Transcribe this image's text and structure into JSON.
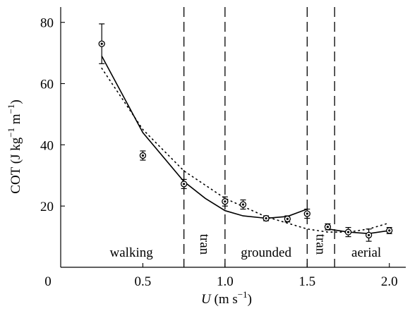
{
  "chart_data": {
    "type": "scatter",
    "title": "",
    "xlabel_italic": "U",
    "xlabel_units": " (m s",
    "xlabel_exp": "−1",
    "xlabel_close": ")",
    "ylabel_main": "COT (J kg",
    "ylabel_exp1": "−1",
    "ylabel_mid": " m",
    "ylabel_exp2": "−1",
    "ylabel_close": ")",
    "xlim": [
      0,
      2.1
    ],
    "ylim": [
      0,
      85
    ],
    "x_ticks": [
      {
        "value": 0,
        "label": "0"
      },
      {
        "value": 0.5,
        "label": "0.5"
      },
      {
        "value": 1.0,
        "label": "1.0"
      },
      {
        "value": 1.5,
        "label": "1.5"
      },
      {
        "value": 2.0,
        "label": "2.0"
      }
    ],
    "y_ticks": [
      {
        "value": 20,
        "label": "20"
      },
      {
        "value": 40,
        "label": "40"
      },
      {
        "value": 60,
        "label": "60"
      },
      {
        "value": 80,
        "label": "80"
      }
    ],
    "points": [
      {
        "x": 0.25,
        "y": 73.0,
        "err": 6.5
      },
      {
        "x": 0.5,
        "y": 36.5,
        "err": 1.5
      },
      {
        "x": 0.75,
        "y": 27.2,
        "err": 1.5
      },
      {
        "x": 1.0,
        "y": 21.5,
        "err": 1.5
      },
      {
        "x": 1.11,
        "y": 20.5,
        "err": 1.5
      },
      {
        "x": 1.25,
        "y": 16.0,
        "err": 0.8
      },
      {
        "x": 1.38,
        "y": 15.8,
        "err": 1.0
      },
      {
        "x": 1.5,
        "y": 17.5,
        "err": 1.5
      },
      {
        "x": 1.625,
        "y": 13.2,
        "err": 1.0
      },
      {
        "x": 1.75,
        "y": 11.5,
        "err": 1.5
      },
      {
        "x": 1.875,
        "y": 10.5,
        "err": 2.0
      },
      {
        "x": 2.0,
        "y": 12.0,
        "err": 1.0
      }
    ],
    "solid_line": [
      {
        "x": 0.25,
        "y": 69.0
      },
      {
        "x": 0.5,
        "y": 44.0
      },
      {
        "x": 0.75,
        "y": 28.0
      },
      {
        "x": 0.88,
        "y": 22.5
      },
      {
        "x": 1.0,
        "y": 18.5
      },
      {
        "x": 1.11,
        "y": 16.8
      },
      {
        "x": 1.25,
        "y": 16.0
      },
      {
        "x": 1.38,
        "y": 16.6
      },
      {
        "x": 1.5,
        "y": 19.0
      }
    ],
    "solid_line_2": [
      {
        "x": 1.625,
        "y": 12.5
      },
      {
        "x": 1.75,
        "y": 11.5
      },
      {
        "x": 1.875,
        "y": 11.0
      },
      {
        "x": 2.0,
        "y": 12.0
      }
    ],
    "dotted_line": [
      {
        "x": 0.25,
        "y": 65.0
      },
      {
        "x": 0.5,
        "y": 45.0
      },
      {
        "x": 0.75,
        "y": 31.5
      },
      {
        "x": 1.0,
        "y": 22.5
      },
      {
        "x": 1.25,
        "y": 16.5
      },
      {
        "x": 1.5,
        "y": 12.5
      },
      {
        "x": 1.625,
        "y": 11.5
      },
      {
        "x": 1.75,
        "y": 11.5
      },
      {
        "x": 1.875,
        "y": 12.5
      },
      {
        "x": 2.0,
        "y": 14.5
      }
    ],
    "vertical_lines": [
      0.75,
      1.0,
      1.5,
      1.667
    ],
    "regions": [
      {
        "label": "walking",
        "x": 0.43,
        "y": 3.5,
        "rotate": false
      },
      {
        "label": "tran",
        "x": 0.875,
        "y": 7.5,
        "rotate": true
      },
      {
        "label": "grounded",
        "x": 1.25,
        "y": 3.5,
        "rotate": false
      },
      {
        "label": "tran",
        "x": 1.583,
        "y": 7.5,
        "rotate": true
      },
      {
        "label": "aerial",
        "x": 1.86,
        "y": 3.5,
        "rotate": false
      }
    ]
  }
}
